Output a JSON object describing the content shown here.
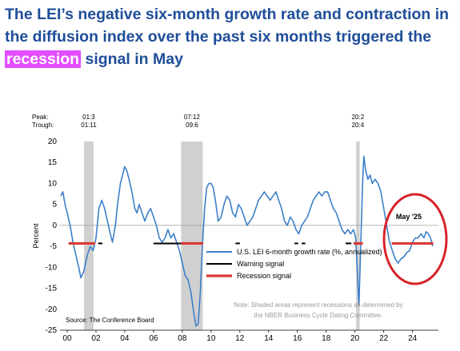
{
  "headline": {
    "part1": "The LEI’s negative six-month growth rate and contraction in the diffusion index over the past six months triggered the ",
    "highlight": "recession",
    "part2": " signal in May"
  },
  "colors": {
    "headline": "#1f4e99",
    "highlight_bg": "#e24dff",
    "line": "#3d7fc9",
    "warning": "#000000",
    "recession_signal": "#d93a34",
    "shading": "#d0d0d0",
    "circle": "#d8232a"
  },
  "chart_data": {
    "type": "line",
    "ylabel": "Percent",
    "ylim": [
      -25,
      20
    ],
    "yticks": [
      20,
      15,
      10,
      5,
      0,
      -5,
      -10,
      -15,
      -20,
      -25
    ],
    "xlim": [
      1999.5,
      2025.8
    ],
    "xticks": [
      {
        "x": 2000,
        "label": "00"
      },
      {
        "x": 2002,
        "label": "02"
      },
      {
        "x": 2004,
        "label": "04"
      },
      {
        "x": 2006,
        "label": "06"
      },
      {
        "x": 2008,
        "label": "08"
      },
      {
        "x": 2010,
        "label": "10"
      },
      {
        "x": 2012,
        "label": "12"
      },
      {
        "x": 2014,
        "label": "14"
      },
      {
        "x": 2016,
        "label": "16"
      },
      {
        "x": 2018,
        "label": "18"
      },
      {
        "x": 2020,
        "label": "20"
      },
      {
        "x": 2022,
        "label": "22"
      },
      {
        "x": 2024,
        "label": "24"
      }
    ],
    "peak_label": "Peak:",
    "trough_label": "Trough:",
    "recessions": [
      {
        "start": 2001.17,
        "end": 2001.83,
        "peak": "01:3",
        "trough": "01:11"
      },
      {
        "start": 2007.92,
        "end": 2009.42,
        "peak": "07:12",
        "trough": "09:6"
      },
      {
        "start": 2020.08,
        "end": 2020.33,
        "peak": "20:2",
        "trough": "20:4"
      }
    ],
    "series": [
      {
        "name": "U.S. LEI 6-month growth rate (%, annualized)",
        "points": [
          [
            1999.55,
            7
          ],
          [
            1999.7,
            8
          ],
          [
            1999.85,
            5
          ],
          [
            2000.0,
            3
          ],
          [
            2000.2,
            0
          ],
          [
            2000.4,
            -4
          ],
          [
            2000.6,
            -7
          ],
          [
            2000.8,
            -10
          ],
          [
            2000.95,
            -12.5
          ],
          [
            2001.15,
            -11
          ],
          [
            2001.4,
            -7
          ],
          [
            2001.6,
            -5
          ],
          [
            2001.8,
            -6
          ],
          [
            2002.0,
            -3
          ],
          [
            2002.2,
            4
          ],
          [
            2002.4,
            6
          ],
          [
            2002.6,
            4
          ],
          [
            2002.8,
            1
          ],
          [
            2003.0,
            -2
          ],
          [
            2003.15,
            -4
          ],
          [
            2003.35,
            0
          ],
          [
            2003.5,
            5
          ],
          [
            2003.7,
            10
          ],
          [
            2003.85,
            12
          ],
          [
            2004.0,
            14
          ],
          [
            2004.15,
            13
          ],
          [
            2004.3,
            11
          ],
          [
            2004.5,
            8
          ],
          [
            2004.7,
            4
          ],
          [
            2004.85,
            3
          ],
          [
            2005.0,
            5
          ],
          [
            2005.2,
            3
          ],
          [
            2005.4,
            1
          ],
          [
            2005.6,
            3
          ],
          [
            2005.8,
            4
          ],
          [
            2006.0,
            2
          ],
          [
            2006.2,
            0
          ],
          [
            2006.4,
            -3
          ],
          [
            2006.6,
            -4
          ],
          [
            2006.8,
            -3
          ],
          [
            2007.0,
            -1
          ],
          [
            2007.2,
            -3
          ],
          [
            2007.4,
            -2
          ],
          [
            2007.6,
            -4
          ],
          [
            2007.8,
            -6
          ],
          [
            2008.0,
            -9
          ],
          [
            2008.2,
            -12
          ],
          [
            2008.4,
            -13
          ],
          [
            2008.6,
            -16
          ],
          [
            2008.8,
            -21
          ],
          [
            2008.95,
            -24
          ],
          [
            2009.1,
            -23.5
          ],
          [
            2009.25,
            -16
          ],
          [
            2009.4,
            -5
          ],
          [
            2009.55,
            4
          ],
          [
            2009.7,
            9
          ],
          [
            2009.85,
            10
          ],
          [
            2010.0,
            10
          ],
          [
            2010.15,
            9
          ],
          [
            2010.3,
            6
          ],
          [
            2010.5,
            1
          ],
          [
            2010.7,
            2
          ],
          [
            2010.9,
            5
          ],
          [
            2011.1,
            7
          ],
          [
            2011.3,
            6
          ],
          [
            2011.5,
            3
          ],
          [
            2011.7,
            2
          ],
          [
            2011.9,
            5
          ],
          [
            2012.1,
            4
          ],
          [
            2012.3,
            2
          ],
          [
            2012.5,
            0
          ],
          [
            2012.7,
            1
          ],
          [
            2012.9,
            2
          ],
          [
            2013.1,
            4
          ],
          [
            2013.3,
            6
          ],
          [
            2013.5,
            7
          ],
          [
            2013.7,
            8
          ],
          [
            2013.9,
            7
          ],
          [
            2014.1,
            6
          ],
          [
            2014.3,
            7
          ],
          [
            2014.5,
            8
          ],
          [
            2014.7,
            6
          ],
          [
            2014.9,
            4
          ],
          [
            2015.1,
            1
          ],
          [
            2015.3,
            0
          ],
          [
            2015.5,
            2
          ],
          [
            2015.7,
            1
          ],
          [
            2015.9,
            -1
          ],
          [
            2016.1,
            -2
          ],
          [
            2016.3,
            0
          ],
          [
            2016.5,
            1
          ],
          [
            2016.7,
            2
          ],
          [
            2016.9,
            4
          ],
          [
            2017.1,
            6
          ],
          [
            2017.3,
            7
          ],
          [
            2017.5,
            8
          ],
          [
            2017.7,
            7
          ],
          [
            2017.9,
            8
          ],
          [
            2018.1,
            8
          ],
          [
            2018.3,
            6
          ],
          [
            2018.5,
            4
          ],
          [
            2018.7,
            3
          ],
          [
            2018.9,
            1
          ],
          [
            2019.1,
            -1
          ],
          [
            2019.3,
            -2
          ],
          [
            2019.5,
            -1
          ],
          [
            2019.7,
            -2
          ],
          [
            2019.9,
            -1
          ],
          [
            2020.05,
            -3
          ],
          [
            2020.15,
            -10
          ],
          [
            2020.28,
            -19
          ],
          [
            2020.42,
            -3
          ],
          [
            2020.52,
            9
          ],
          [
            2020.62,
            16.5
          ],
          [
            2020.75,
            13
          ],
          [
            2020.9,
            11
          ],
          [
            2021.05,
            12
          ],
          [
            2021.2,
            10
          ],
          [
            2021.4,
            11
          ],
          [
            2021.6,
            10
          ],
          [
            2021.8,
            8
          ],
          [
            2022.0,
            4
          ],
          [
            2022.2,
            0
          ],
          [
            2022.4,
            -4
          ],
          [
            2022.6,
            -6
          ],
          [
            2022.8,
            -8
          ],
          [
            2023.0,
            -9
          ],
          [
            2023.2,
            -8
          ],
          [
            2023.4,
            -7.5
          ],
          [
            2023.6,
            -6.5
          ],
          [
            2023.8,
            -6
          ],
          [
            2024.0,
            -4
          ],
          [
            2024.2,
            -3
          ],
          [
            2024.4,
            -3
          ],
          [
            2024.6,
            -2
          ],
          [
            2024.8,
            -3
          ],
          [
            2024.95,
            -1.5
          ],
          [
            2025.1,
            -2
          ],
          [
            2025.25,
            -3
          ],
          [
            2025.4,
            -5
          ]
        ]
      },
      {
        "name": "Warning signal",
        "level": -4.3,
        "segments": [
          [
            2002.15,
            2002.45
          ],
          [
            2006.0,
            2007.92
          ],
          [
            2011.7,
            2012.0
          ],
          [
            2015.8,
            2016.05
          ],
          [
            2016.3,
            2016.55
          ],
          [
            2019.35,
            2019.75
          ]
        ]
      },
      {
        "name": "Recession signal",
        "level": -4.3,
        "segments": [
          [
            2000.1,
            2001.95
          ],
          [
            2007.92,
            2009.45
          ],
          [
            2019.9,
            2020.55
          ],
          [
            2022.55,
            2025.45
          ]
        ]
      }
    ],
    "annotations": {
      "month_label": "May '25",
      "source": "Source: The Conference Board",
      "note_line1": "Note: Shaded areas represent recessions as determined by",
      "note_line2": "the NBER Business Cycle Dating Committee."
    }
  }
}
